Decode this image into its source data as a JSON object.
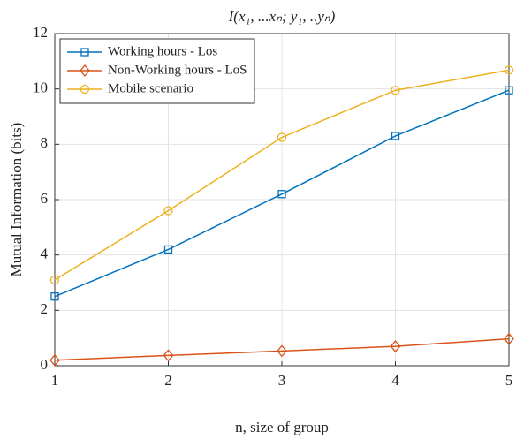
{
  "chart_data": {
    "type": "line",
    "title": "I(x₁, ...xₙ; y₁, ..yₙ)",
    "x_label": "n, size of group",
    "y_label": "Mutual Information (bits)",
    "x": [
      1,
      2,
      3,
      4,
      5
    ],
    "series": [
      {
        "name": "Working hours - Los",
        "color": "#0072bd",
        "marker": "square",
        "values": [
          2.5,
          4.2,
          6.2,
          8.3,
          9.95
        ]
      },
      {
        "name": "Non-Working hours - LoS",
        "color": "#d95319",
        "marker": "diamond",
        "values": [
          0.2,
          0.37,
          0.53,
          0.7,
          0.97
        ]
      },
      {
        "name": "Mobile scenario",
        "color": "#edb120",
        "marker": "circle",
        "values": [
          3.1,
          5.6,
          8.25,
          9.95,
          10.68
        ]
      }
    ],
    "xlim": [
      1,
      5
    ],
    "xticks": [
      1,
      2,
      3,
      4,
      5
    ],
    "ylim": [
      0,
      12
    ],
    "yticks": [
      0,
      2,
      4,
      6,
      8,
      10,
      12
    ],
    "grid": true,
    "legend_location": "northwest"
  }
}
